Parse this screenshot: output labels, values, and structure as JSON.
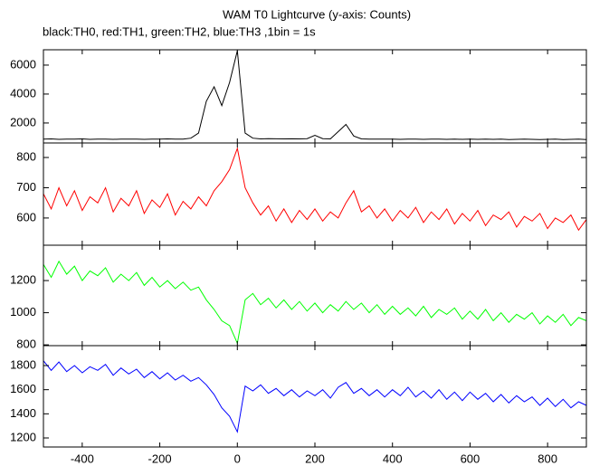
{
  "header": {
    "title": "WAM T0 Lightcurve (y-axis: Counts)",
    "subtitle": "black:TH0, red:TH1, green:TH2, blue:TH3 ,1bin = 1s"
  },
  "chart_data": [
    {
      "type": "line",
      "xlim": [
        -500,
        900
      ],
      "ylim": [
        620,
        7060
      ],
      "yticks": [
        2000,
        4000,
        6000
      ],
      "x": [
        -500,
        -480,
        -460,
        -440,
        -420,
        -400,
        -380,
        -360,
        -340,
        -320,
        -300,
        -280,
        -260,
        -240,
        -220,
        -200,
        -180,
        -160,
        -140,
        -120,
        -100,
        -80,
        -60,
        -40,
        -20,
        0,
        20,
        40,
        60,
        80,
        100,
        120,
        140,
        160,
        180,
        200,
        220,
        240,
        260,
        280,
        300,
        320,
        340,
        360,
        380,
        400,
        420,
        440,
        460,
        480,
        500,
        520,
        540,
        560,
        580,
        600,
        620,
        640,
        660,
        680,
        700,
        720,
        740,
        760,
        780,
        800,
        820,
        840,
        860,
        880,
        900
      ],
      "series": [
        {
          "color": "#000000",
          "values": [
            880,
            900,
            870,
            890,
            880,
            900,
            870,
            880,
            890,
            870,
            880,
            890,
            880,
            870,
            890,
            880,
            900,
            880,
            890,
            950,
            1300,
            3500,
            4500,
            3200,
            4800,
            7000,
            1300,
            950,
            900,
            920,
            910,
            900,
            910,
            900,
            920,
            1150,
            920,
            900,
            1400,
            1900,
            1100,
            900,
            890,
            880,
            890,
            880,
            870,
            890,
            880,
            870,
            880,
            890,
            870,
            880,
            870,
            880,
            870,
            890,
            870,
            880,
            860,
            870,
            880,
            870,
            860,
            870,
            880,
            860,
            870,
            880,
            860
          ]
        }
      ]
    },
    {
      "type": "line",
      "xlim": [
        -500,
        900
      ],
      "ylim": [
        510,
        848
      ],
      "yticks": [
        600,
        700,
        800
      ],
      "x": [
        -500,
        -480,
        -460,
        -440,
        -420,
        -400,
        -380,
        -360,
        -340,
        -320,
        -300,
        -280,
        -260,
        -240,
        -220,
        -200,
        -180,
        -160,
        -140,
        -120,
        -100,
        -80,
        -60,
        -40,
        -20,
        0,
        20,
        40,
        60,
        80,
        100,
        120,
        140,
        160,
        180,
        200,
        220,
        240,
        260,
        280,
        300,
        320,
        340,
        360,
        380,
        400,
        420,
        440,
        460,
        480,
        500,
        520,
        540,
        560,
        580,
        600,
        620,
        640,
        660,
        680,
        700,
        720,
        740,
        760,
        780,
        800,
        820,
        840,
        860,
        880,
        900
      ],
      "series": [
        {
          "color": "#ff0000",
          "values": [
            680,
            630,
            700,
            640,
            690,
            625,
            670,
            650,
            700,
            620,
            665,
            640,
            690,
            615,
            660,
            635,
            680,
            610,
            655,
            630,
            670,
            640,
            690,
            720,
            760,
            830,
            700,
            650,
            610,
            640,
            590,
            630,
            585,
            625,
            595,
            630,
            590,
            620,
            600,
            650,
            690,
            620,
            640,
            600,
            630,
            590,
            625,
            600,
            635,
            585,
            620,
            595,
            630,
            580,
            615,
            590,
            625,
            575,
            610,
            595,
            620,
            570,
            605,
            590,
            615,
            565,
            600,
            585,
            610,
            560,
            595
          ]
        }
      ]
    },
    {
      "type": "line",
      "xlim": [
        -500,
        900
      ],
      "ylim": [
        795,
        1420
      ],
      "yticks": [
        800,
        1000,
        1200
      ],
      "x": [
        -500,
        -480,
        -460,
        -440,
        -420,
        -400,
        -380,
        -360,
        -340,
        -320,
        -300,
        -280,
        -260,
        -240,
        -220,
        -200,
        -180,
        -160,
        -140,
        -120,
        -100,
        -80,
        -60,
        -40,
        -20,
        0,
        20,
        40,
        60,
        80,
        100,
        120,
        140,
        160,
        180,
        200,
        220,
        240,
        260,
        280,
        300,
        320,
        340,
        360,
        380,
        400,
        420,
        440,
        460,
        480,
        500,
        520,
        540,
        560,
        580,
        600,
        620,
        640,
        660,
        680,
        700,
        720,
        740,
        760,
        780,
        800,
        820,
        840,
        860,
        880,
        900
      ],
      "series": [
        {
          "color": "#00ff00",
          "values": [
            1300,
            1220,
            1320,
            1240,
            1290,
            1200,
            1260,
            1230,
            1280,
            1190,
            1240,
            1200,
            1250,
            1170,
            1220,
            1160,
            1200,
            1150,
            1190,
            1140,
            1160,
            1080,
            1020,
            950,
            920,
            810,
            1080,
            1120,
            1050,
            1090,
            1030,
            1080,
            1020,
            1070,
            1010,
            1060,
            1000,
            1050,
            1010,
            1070,
            1020,
            1060,
            1000,
            1050,
            990,
            1040,
            990,
            1030,
            980,
            1040,
            970,
            1020,
            990,
            1030,
            960,
            1010,
            960,
            1020,
            950,
            1000,
            940,
            990,
            960,
            1000,
            930,
            980,
            940,
            990,
            920,
            970,
            950
          ]
        }
      ]
    },
    {
      "type": "line",
      "xlim": [
        -500,
        900
      ],
      "ylim": [
        1125,
        1965
      ],
      "yticks": [
        1200,
        1400,
        1600,
        1800
      ],
      "xticks": [
        -400,
        -200,
        0,
        200,
        400,
        600,
        800
      ],
      "x": [
        -500,
        -480,
        -460,
        -440,
        -420,
        -400,
        -380,
        -360,
        -340,
        -320,
        -300,
        -280,
        -260,
        -240,
        -220,
        -200,
        -180,
        -160,
        -140,
        -120,
        -100,
        -80,
        -60,
        -40,
        -20,
        0,
        20,
        40,
        60,
        80,
        100,
        120,
        140,
        160,
        180,
        200,
        220,
        240,
        260,
        280,
        300,
        320,
        340,
        360,
        380,
        400,
        420,
        440,
        460,
        480,
        500,
        520,
        540,
        560,
        580,
        600,
        620,
        640,
        660,
        680,
        700,
        720,
        740,
        760,
        780,
        800,
        820,
        840,
        860,
        880,
        900
      ],
      "series": [
        {
          "color": "#0000ff",
          "values": [
            1840,
            1760,
            1830,
            1750,
            1800,
            1740,
            1790,
            1760,
            1810,
            1720,
            1780,
            1730,
            1770,
            1700,
            1750,
            1690,
            1740,
            1680,
            1720,
            1670,
            1700,
            1640,
            1560,
            1450,
            1380,
            1250,
            1630,
            1590,
            1640,
            1570,
            1610,
            1550,
            1600,
            1540,
            1590,
            1550,
            1600,
            1530,
            1620,
            1660,
            1570,
            1610,
            1550,
            1600,
            1540,
            1600,
            1550,
            1620,
            1540,
            1590,
            1530,
            1600,
            1520,
            1580,
            1510,
            1580,
            1520,
            1570,
            1500,
            1560,
            1490,
            1550,
            1500,
            1540,
            1470,
            1530,
            1460,
            1520,
            1450,
            1500,
            1470
          ]
        }
      ]
    }
  ]
}
